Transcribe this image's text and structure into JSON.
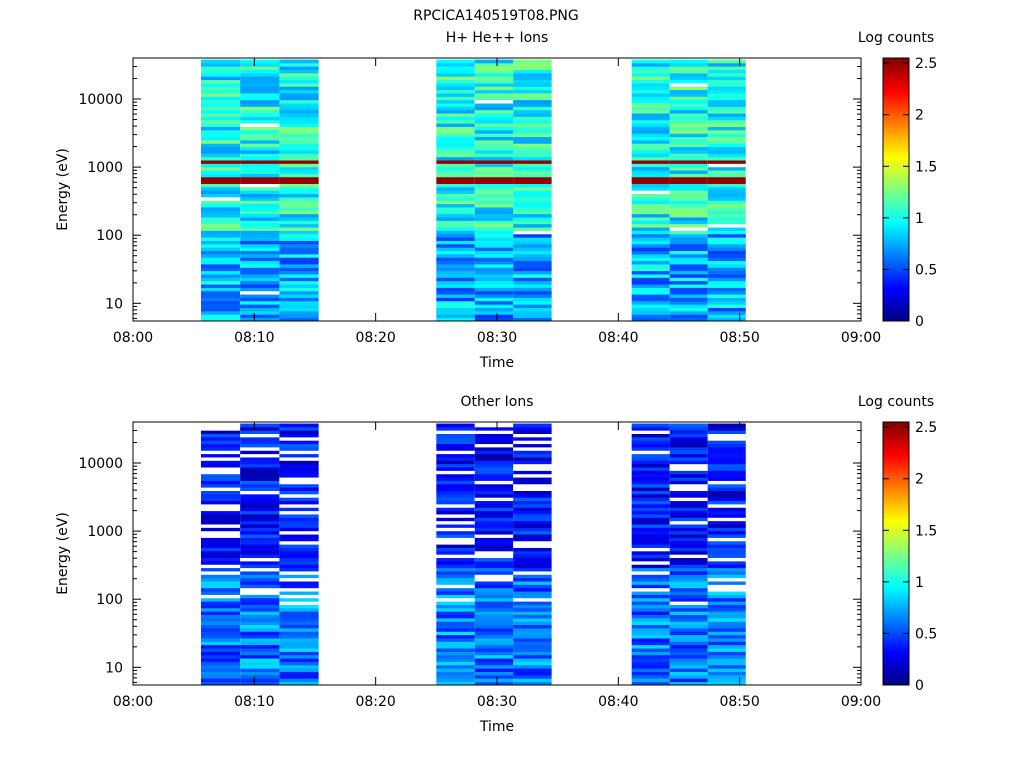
{
  "page_title": "RPCICA140519T08.PNG",
  "chart_data": [
    {
      "type": "heatmap",
      "title": "H+ He++ Ions",
      "xlabel": "Time",
      "ylabel": "Energy (eV)",
      "x_scale": "time",
      "x_range": [
        "08:00",
        "09:00"
      ],
      "x_ticks": [
        "08:00",
        "08:10",
        "08:20",
        "08:30",
        "08:40",
        "08:50",
        "09:00"
      ],
      "y_scale": "log",
      "y_range": [
        5.5,
        40000
      ],
      "y_ticks": [
        "10",
        "100",
        "1000",
        "10000"
      ],
      "colorbar": {
        "label": "Log counts",
        "range": [
          0,
          2.55
        ],
        "ticks": [
          "0",
          "0.5",
          "1",
          "1.5",
          "2",
          "2.5"
        ]
      },
      "colormap": "jet",
      "data_blocks": [
        {
          "time_start": "08:05.6",
          "time_end": "08:15.3",
          "columns": 3
        },
        {
          "time_start": "08:25.0",
          "time_end": "08:34.5",
          "columns": 3
        },
        {
          "time_start": "08:41.1",
          "time_end": "08:50.5",
          "columns": 3
        }
      ],
      "peak_energies_eV": [
        640,
        1200
      ],
      "peak_value_log_counts": 2.5,
      "background_value_log_counts": 1.0
    },
    {
      "type": "heatmap",
      "title": "Other Ions",
      "xlabel": "Time",
      "ylabel": "Energy (eV)",
      "x_scale": "time",
      "x_range": [
        "08:00",
        "09:00"
      ],
      "x_ticks": [
        "08:00",
        "08:10",
        "08:20",
        "08:30",
        "08:40",
        "08:50",
        "09:00"
      ],
      "y_scale": "log",
      "y_range": [
        5.5,
        40000
      ],
      "y_ticks": [
        "10",
        "100",
        "1000",
        "10000"
      ],
      "colorbar": {
        "label": "Log counts",
        "range": [
          0,
          2.55
        ],
        "ticks": [
          "0",
          "0.5",
          "1",
          "1.5",
          "2",
          "2.5"
        ]
      },
      "colormap": "jet",
      "data_blocks": [
        {
          "time_start": "08:05.6",
          "time_end": "08:15.3",
          "columns": 3
        },
        {
          "time_start": "08:25.0",
          "time_end": "08:34.5",
          "columns": 3
        },
        {
          "time_start": "08:41.1",
          "time_end": "08:50.5",
          "columns": 3
        }
      ],
      "background_value_log_counts": 0.3
    }
  ]
}
